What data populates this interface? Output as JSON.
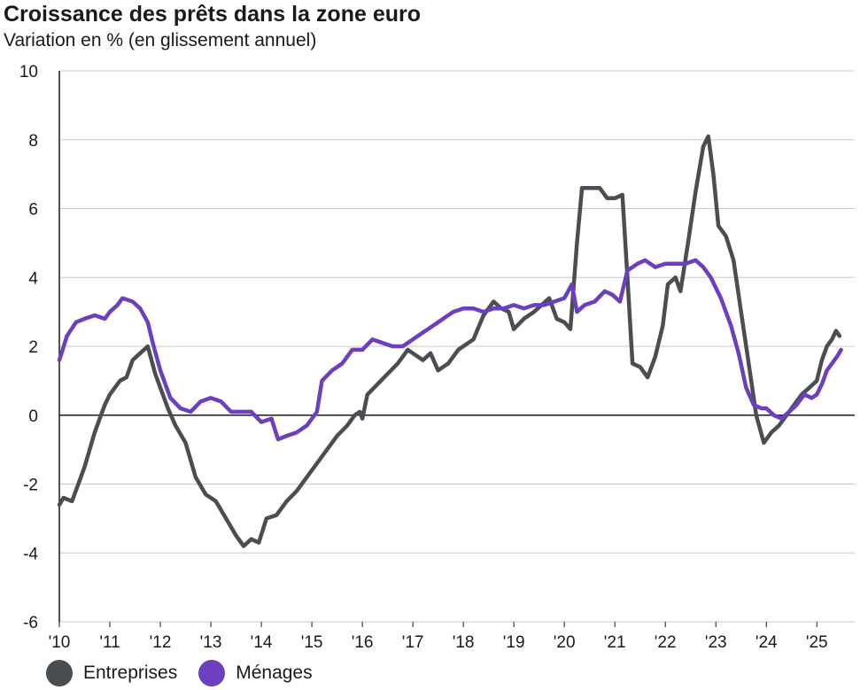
{
  "chart_data": {
    "type": "line",
    "title": "Croissance des prêts dans la zone euro",
    "subtitle": "Variation en % (en glissement annuel)",
    "xlim": [
      2010,
      2025.75
    ],
    "ylim": [
      -6,
      10
    ],
    "yticks": [
      10,
      8,
      6,
      4,
      2,
      0,
      -2,
      -4,
      -6
    ],
    "xtick_values": [
      2010,
      2011,
      2012,
      2013,
      2014,
      2015,
      2016,
      2017,
      2018,
      2019,
      2020,
      2021,
      2022,
      2023,
      2024,
      2025
    ],
    "xtick_labels": [
      "'10",
      "'11",
      "'12",
      "'13",
      "'14",
      "'15",
      "'16",
      "'17",
      "'18",
      "'19",
      "'20",
      "'21",
      "'22",
      "'23",
      "'24",
      "'25"
    ],
    "grid": true,
    "legend_position": "bottom-left",
    "series": [
      {
        "name": "Entreprises",
        "color": "#4a4e52",
        "points": [
          [
            2010.0,
            -2.6
          ],
          [
            2010.08,
            -2.4
          ],
          [
            2010.25,
            -2.5
          ],
          [
            2010.5,
            -1.5
          ],
          [
            2010.7,
            -0.5
          ],
          [
            2010.9,
            0.3
          ],
          [
            2011.0,
            0.6
          ],
          [
            2011.2,
            1.0
          ],
          [
            2011.33,
            1.1
          ],
          [
            2011.45,
            1.6
          ],
          [
            2011.6,
            1.8
          ],
          [
            2011.75,
            2.0
          ],
          [
            2011.9,
            1.2
          ],
          [
            2012.0,
            0.8
          ],
          [
            2012.15,
            0.2
          ],
          [
            2012.3,
            -0.3
          ],
          [
            2012.5,
            -0.8
          ],
          [
            2012.7,
            -1.8
          ],
          [
            2012.9,
            -2.3
          ],
          [
            2013.1,
            -2.5
          ],
          [
            2013.3,
            -3.0
          ],
          [
            2013.5,
            -3.5
          ],
          [
            2013.65,
            -3.8
          ],
          [
            2013.8,
            -3.6
          ],
          [
            2013.95,
            -3.7
          ],
          [
            2014.1,
            -3.0
          ],
          [
            2014.3,
            -2.9
          ],
          [
            2014.5,
            -2.5
          ],
          [
            2014.7,
            -2.2
          ],
          [
            2014.9,
            -1.8
          ],
          [
            2015.1,
            -1.4
          ],
          [
            2015.3,
            -1.0
          ],
          [
            2015.5,
            -0.6
          ],
          [
            2015.7,
            -0.3
          ],
          [
            2015.85,
            0.0
          ],
          [
            2015.95,
            0.1
          ],
          [
            2016.0,
            -0.1
          ],
          [
            2016.1,
            0.6
          ],
          [
            2016.3,
            0.9
          ],
          [
            2016.5,
            1.2
          ],
          [
            2016.7,
            1.5
          ],
          [
            2016.9,
            1.9
          ],
          [
            2017.0,
            1.8
          ],
          [
            2017.2,
            1.6
          ],
          [
            2017.35,
            1.8
          ],
          [
            2017.5,
            1.3
          ],
          [
            2017.7,
            1.5
          ],
          [
            2017.9,
            1.9
          ],
          [
            2018.0,
            2.0
          ],
          [
            2018.2,
            2.2
          ],
          [
            2018.4,
            2.9
          ],
          [
            2018.6,
            3.3
          ],
          [
            2018.75,
            3.1
          ],
          [
            2018.9,
            3.0
          ],
          [
            2019.0,
            2.5
          ],
          [
            2019.2,
            2.8
          ],
          [
            2019.4,
            3.0
          ],
          [
            2019.55,
            3.2
          ],
          [
            2019.7,
            3.4
          ],
          [
            2019.85,
            2.8
          ],
          [
            2020.0,
            2.7
          ],
          [
            2020.12,
            2.5
          ],
          [
            2020.25,
            5.0
          ],
          [
            2020.35,
            6.6
          ],
          [
            2020.5,
            6.6
          ],
          [
            2020.7,
            6.6
          ],
          [
            2020.85,
            6.3
          ],
          [
            2021.0,
            6.3
          ],
          [
            2021.15,
            6.4
          ],
          [
            2021.25,
            4.0
          ],
          [
            2021.35,
            1.5
          ],
          [
            2021.5,
            1.4
          ],
          [
            2021.65,
            1.1
          ],
          [
            2021.8,
            1.7
          ],
          [
            2021.95,
            2.6
          ],
          [
            2022.05,
            3.8
          ],
          [
            2022.2,
            4.0
          ],
          [
            2022.3,
            3.6
          ],
          [
            2022.45,
            5.0
          ],
          [
            2022.6,
            6.5
          ],
          [
            2022.75,
            7.8
          ],
          [
            2022.85,
            8.1
          ],
          [
            2022.95,
            7.0
          ],
          [
            2023.05,
            5.5
          ],
          [
            2023.2,
            5.2
          ],
          [
            2023.35,
            4.5
          ],
          [
            2023.5,
            3.0
          ],
          [
            2023.65,
            1.5
          ],
          [
            2023.8,
            0.0
          ],
          [
            2023.95,
            -0.8
          ],
          [
            2024.1,
            -0.5
          ],
          [
            2024.25,
            -0.3
          ],
          [
            2024.4,
            0.0
          ],
          [
            2024.55,
            0.3
          ],
          [
            2024.7,
            0.6
          ],
          [
            2024.85,
            0.8
          ],
          [
            2025.0,
            1.0
          ],
          [
            2025.1,
            1.6
          ],
          [
            2025.2,
            2.0
          ],
          [
            2025.3,
            2.2
          ],
          [
            2025.38,
            2.45
          ],
          [
            2025.45,
            2.3
          ]
        ]
      },
      {
        "name": "Ménages",
        "color": "#6b3fbf",
        "points": [
          [
            2010.0,
            1.6
          ],
          [
            2010.15,
            2.3
          ],
          [
            2010.33,
            2.7
          ],
          [
            2010.5,
            2.8
          ],
          [
            2010.7,
            2.9
          ],
          [
            2010.9,
            2.8
          ],
          [
            2011.0,
            3.0
          ],
          [
            2011.15,
            3.2
          ],
          [
            2011.25,
            3.4
          ],
          [
            2011.45,
            3.3
          ],
          [
            2011.6,
            3.1
          ],
          [
            2011.75,
            2.7
          ],
          [
            2011.85,
            2.1
          ],
          [
            2012.0,
            1.3
          ],
          [
            2012.2,
            0.5
          ],
          [
            2012.4,
            0.2
          ],
          [
            2012.6,
            0.1
          ],
          [
            2012.8,
            0.4
          ],
          [
            2013.0,
            0.5
          ],
          [
            2013.2,
            0.4
          ],
          [
            2013.4,
            0.1
          ],
          [
            2013.6,
            0.1
          ],
          [
            2013.8,
            0.1
          ],
          [
            2014.0,
            -0.2
          ],
          [
            2014.2,
            -0.1
          ],
          [
            2014.33,
            -0.7
          ],
          [
            2014.5,
            -0.6
          ],
          [
            2014.7,
            -0.5
          ],
          [
            2014.9,
            -0.3
          ],
          [
            2015.1,
            0.1
          ],
          [
            2015.2,
            1.0
          ],
          [
            2015.4,
            1.3
          ],
          [
            2015.6,
            1.5
          ],
          [
            2015.8,
            1.9
          ],
          [
            2016.0,
            1.9
          ],
          [
            2016.2,
            2.2
          ],
          [
            2016.4,
            2.1
          ],
          [
            2016.6,
            2.0
          ],
          [
            2016.8,
            2.0
          ],
          [
            2017.0,
            2.2
          ],
          [
            2017.2,
            2.4
          ],
          [
            2017.4,
            2.6
          ],
          [
            2017.6,
            2.8
          ],
          [
            2017.8,
            3.0
          ],
          [
            2018.0,
            3.1
          ],
          [
            2018.2,
            3.1
          ],
          [
            2018.4,
            3.0
          ],
          [
            2018.6,
            3.1
          ],
          [
            2018.8,
            3.1
          ],
          [
            2019.0,
            3.2
          ],
          [
            2019.2,
            3.1
          ],
          [
            2019.4,
            3.2
          ],
          [
            2019.6,
            3.2
          ],
          [
            2019.8,
            3.3
          ],
          [
            2020.0,
            3.4
          ],
          [
            2020.15,
            3.8
          ],
          [
            2020.25,
            3.0
          ],
          [
            2020.4,
            3.2
          ],
          [
            2020.6,
            3.3
          ],
          [
            2020.8,
            3.6
          ],
          [
            2020.95,
            3.5
          ],
          [
            2021.1,
            3.3
          ],
          [
            2021.25,
            4.2
          ],
          [
            2021.45,
            4.4
          ],
          [
            2021.6,
            4.5
          ],
          [
            2021.8,
            4.3
          ],
          [
            2022.0,
            4.4
          ],
          [
            2022.2,
            4.4
          ],
          [
            2022.4,
            4.4
          ],
          [
            2022.6,
            4.5
          ],
          [
            2022.75,
            4.3
          ],
          [
            2022.9,
            4.0
          ],
          [
            2023.1,
            3.4
          ],
          [
            2023.3,
            2.6
          ],
          [
            2023.45,
            1.8
          ],
          [
            2023.6,
            0.8
          ],
          [
            2023.75,
            0.3
          ],
          [
            2023.9,
            0.2
          ],
          [
            2024.0,
            0.2
          ],
          [
            2024.15,
            0.0
          ],
          [
            2024.3,
            -0.1
          ],
          [
            2024.45,
            0.1
          ],
          [
            2024.6,
            0.3
          ],
          [
            2024.75,
            0.6
          ],
          [
            2024.9,
            0.5
          ],
          [
            2025.0,
            0.6
          ],
          [
            2025.1,
            0.9
          ],
          [
            2025.2,
            1.3
          ],
          [
            2025.3,
            1.5
          ],
          [
            2025.4,
            1.7
          ],
          [
            2025.48,
            1.9
          ]
        ]
      }
    ]
  }
}
